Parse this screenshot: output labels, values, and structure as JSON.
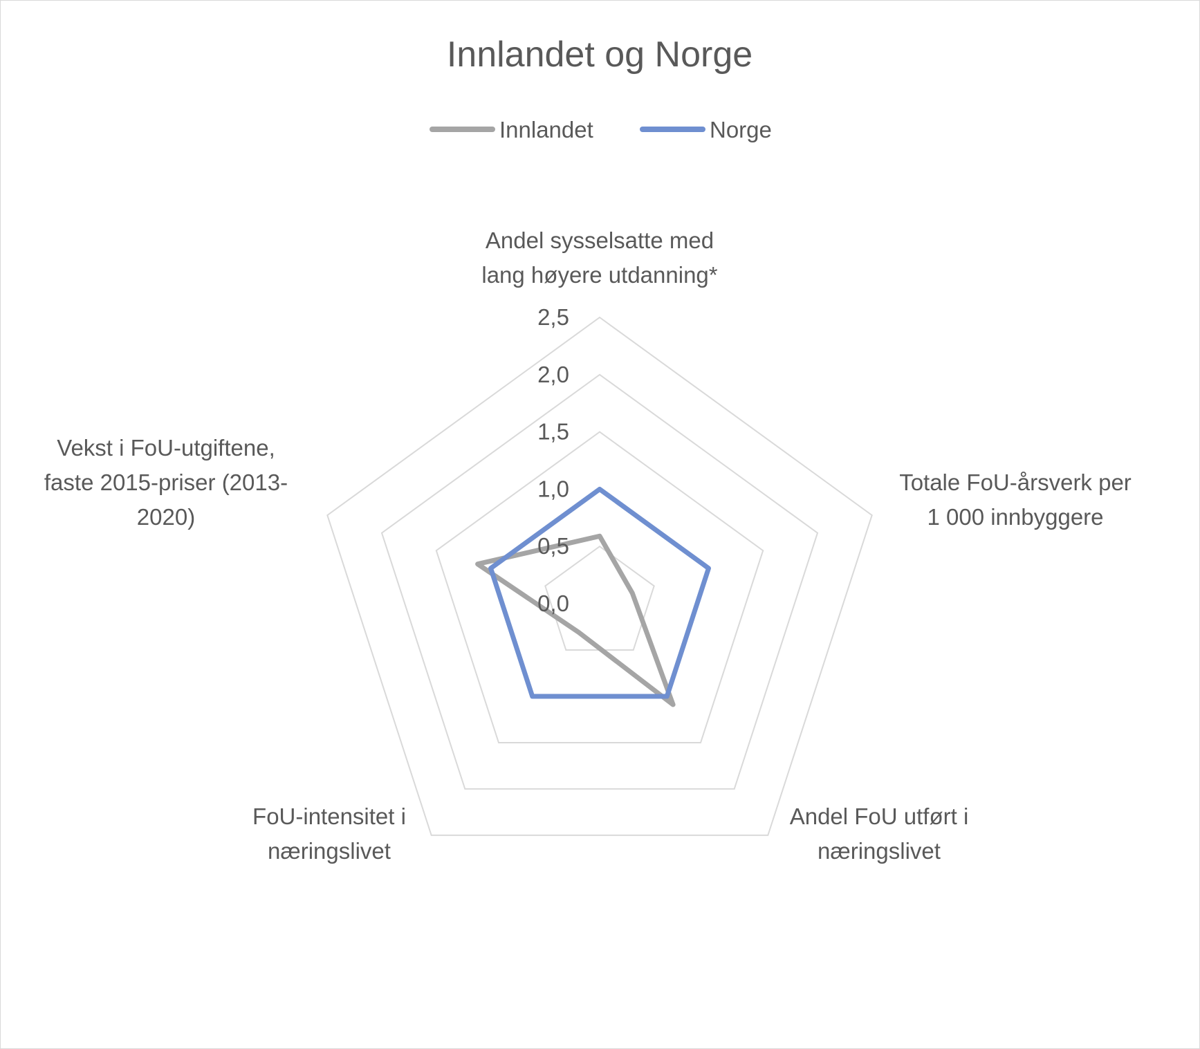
{
  "chart_data": {
    "type": "radar",
    "title": "Innlandet og Norge",
    "legend_position": "top",
    "grid": true,
    "rlim": [
      0,
      2.5
    ],
    "ticks": [
      "0,0",
      "0,5",
      "1,0",
      "1,5",
      "2,0",
      "2,5"
    ],
    "tick_values": [
      0,
      0.5,
      1.0,
      1.5,
      2.0,
      2.5
    ],
    "axes": [
      {
        "lines": [
          "Andel sysselsatte med",
          "lang høyere utdanning*"
        ]
      },
      {
        "lines": [
          "Totale FoU-årsverk per",
          "1 000 innbyggere"
        ]
      },
      {
        "lines": [
          "Andel FoU utført i",
          "næringslivet"
        ]
      },
      {
        "lines": [
          "FoU-intensitet i",
          "næringslivet"
        ]
      },
      {
        "lines": [
          "Vekst i FoU-utgiftene,",
          "faste 2015-priser (2013-",
          "2020)"
        ]
      }
    ],
    "series": [
      {
        "name": "Innlandet",
        "color": "#a5a5a5",
        "values": [
          0.59,
          0.3,
          1.09,
          0.31,
          1.12
        ]
      },
      {
        "name": "Norge",
        "color": "#6f8fd0",
        "values": [
          1.0,
          1.0,
          1.0,
          1.0,
          1.0
        ]
      }
    ]
  }
}
